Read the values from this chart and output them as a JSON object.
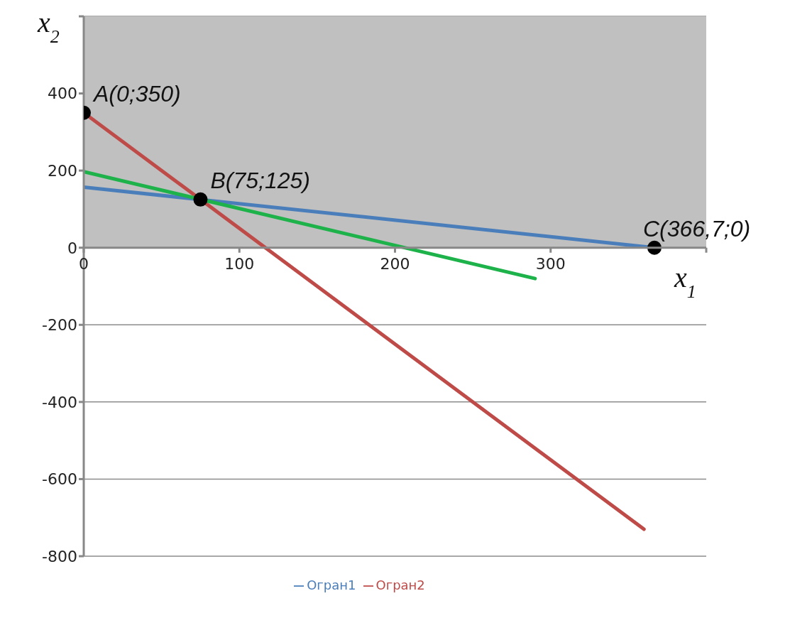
{
  "chart_data": {
    "type": "line",
    "xlabel": "x$_{1}$",
    "ylabel": "x$_{2}$",
    "xlim": [
      0,
      400
    ],
    "xticks": [
      0,
      100,
      200,
      300,
      {
        "value": 400,
        "label": null
      }
    ],
    "ylim": [
      -800,
      600
    ],
    "yticks": [
      -800,
      -600,
      -400,
      -200,
      0,
      200,
      400,
      {
        "value": 600,
        "label": null
      }
    ],
    "series": [
      {
        "name": "Огран1",
        "color": "#4a7ebb",
        "x": [
          0,
          366.7
        ],
        "values": [
          157,
          0
        ]
      },
      {
        "name": "Огран2",
        "color": "#be4b48",
        "x": [
          0,
          360
        ],
        "values": [
          350,
          -730
        ]
      },
      {
        "color": "#1db24a",
        "x": [
          0,
          290
        ],
        "values": [
          197,
          -80
        ]
      },
      {
        "type": "scatter",
        "color": "#000000",
        "marker": "circle",
        "x": [
          0,
          75,
          366.7
        ],
        "values": [
          350,
          125,
          0
        ]
      }
    ],
    "bands": [
      {
        "axis": "y",
        "from": 0,
        "to": 600,
        "color": "#c0c0c0"
      }
    ],
    "annotations": [
      {
        "text": "A(0;350)",
        "x": 0,
        "y": 350
      },
      {
        "text": "B(75;125)",
        "x": 75,
        "y": 125
      },
      {
        "text": "C(366,7;0)",
        "x": 366.7,
        "y": 0
      }
    ],
    "grid": "y",
    "legend": "bottom",
    "marker": "none",
    "line_style": "solid"
  }
}
